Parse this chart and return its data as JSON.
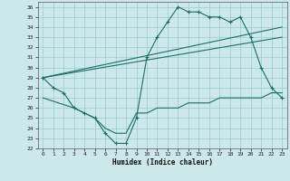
{
  "xlabel": "Humidex (Indice chaleur)",
  "bg_color": "#cce8ea",
  "grid_color": "#99cccc",
  "line_color": "#1a6e6a",
  "xlim": [
    -0.5,
    23.5
  ],
  "ylim": [
    22,
    36.5
  ],
  "xticks": [
    0,
    1,
    2,
    3,
    4,
    5,
    6,
    7,
    8,
    9,
    10,
    11,
    12,
    13,
    14,
    15,
    16,
    17,
    18,
    19,
    20,
    21,
    22,
    23
  ],
  "yticks": [
    22,
    23,
    24,
    25,
    26,
    27,
    28,
    29,
    30,
    31,
    32,
    33,
    34,
    35,
    36
  ],
  "line1_x": [
    0,
    1,
    2,
    3,
    4,
    5,
    6,
    7,
    8,
    9,
    10,
    11,
    12,
    13,
    14,
    15,
    16,
    17,
    18,
    19,
    20,
    21,
    22,
    23
  ],
  "line1_y": [
    29,
    28,
    27.5,
    26,
    25.5,
    25,
    23.5,
    22.5,
    22.5,
    25,
    31,
    33,
    34.5,
    36,
    35.5,
    35.5,
    35,
    35,
    34.5,
    35,
    33,
    30,
    28,
    27
  ],
  "line2_x": [
    0,
    23
  ],
  "line2_y": [
    29,
    34
  ],
  "line3_x": [
    0,
    23
  ],
  "line3_y": [
    29,
    33
  ],
  "line4_x": [
    0,
    3,
    5,
    6,
    7,
    8,
    9,
    10,
    11,
    12,
    13,
    14,
    15,
    16,
    17,
    18,
    19,
    20,
    21,
    22,
    23
  ],
  "line4_y": [
    27,
    26,
    25,
    24,
    23.5,
    23.5,
    25.5,
    25.5,
    26,
    26,
    26,
    26.5,
    26.5,
    26.5,
    27,
    27,
    27,
    27,
    27,
    27.5,
    27.5
  ]
}
